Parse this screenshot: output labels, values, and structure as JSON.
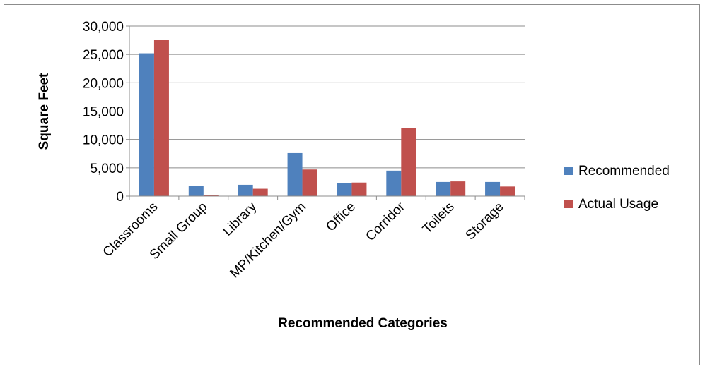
{
  "chart_data": {
    "type": "bar",
    "title": "",
    "xlabel": "Recommended Categories",
    "ylabel": "Square Feet",
    "ylim": [
      0,
      30000
    ],
    "yticks": [
      0,
      5000,
      10000,
      15000,
      20000,
      25000,
      30000
    ],
    "ytick_labels": [
      "0",
      "5,000",
      "10,000",
      "15,000",
      "20,000",
      "25,000",
      "30,000"
    ],
    "categories": [
      "Classrooms",
      "Small Group",
      "Library",
      "MP/Kitchen/Gym",
      "Office",
      "Corridor",
      "Toilets",
      "Storage"
    ],
    "series": [
      {
        "name": "Recommended",
        "color": "#4f81bd",
        "values": [
          25200,
          1800,
          2000,
          7600,
          2300,
          4500,
          2500,
          2500
        ]
      },
      {
        "name": "Actual Usage",
        "color": "#c0504d",
        "values": [
          27600,
          200,
          1300,
          4700,
          2400,
          12000,
          2600,
          1700
        ]
      }
    ],
    "grid": "horizontal",
    "legend_position": "right"
  }
}
